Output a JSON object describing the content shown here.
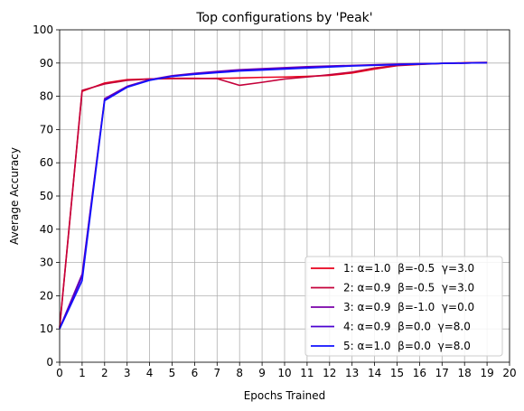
{
  "chart_data": {
    "type": "line",
    "title": "Top configurations by 'Peak'",
    "xlabel": "Epochs Trained",
    "ylabel": "Average Accuracy",
    "xlim": [
      0,
      20
    ],
    "ylim": [
      0,
      100
    ],
    "xticks": [
      "0",
      "1",
      "2",
      "3",
      "4",
      "5",
      "6",
      "7",
      "8",
      "9",
      "10",
      "11",
      "12",
      "13",
      "14",
      "15",
      "16",
      "17",
      "18",
      "19",
      "20"
    ],
    "yticks": [
      "0",
      "10",
      "20",
      "30",
      "40",
      "50",
      "60",
      "70",
      "80",
      "90",
      "100"
    ],
    "grid": true,
    "legend_position": "bottom-right",
    "x": [
      0,
      1,
      2,
      3,
      4,
      5,
      6,
      7,
      8,
      9,
      10,
      11,
      12,
      13,
      14,
      15,
      16,
      17,
      18,
      19
    ],
    "series": [
      {
        "name": "1: α=1.0  β=-0.5  γ=3.0",
        "color": "#e8001c",
        "values": [
          10.5,
          81.5,
          84.0,
          85.0,
          85.2,
          85.3,
          85.3,
          85.4,
          85.5,
          85.7,
          85.8,
          86.0,
          86.3,
          87.0,
          88.2,
          89.2,
          89.6,
          89.9,
          90.1,
          90.2
        ]
      },
      {
        "name": "2: α=0.9  β=-0.5  γ=3.0",
        "color": "#c4003a",
        "values": [
          10.3,
          81.8,
          83.7,
          84.8,
          85.2,
          85.4,
          85.4,
          85.3,
          83.3,
          84.2,
          85.2,
          85.8,
          86.5,
          87.3,
          88.5,
          89.3,
          89.7,
          89.9,
          90.0,
          90.1
        ]
      },
      {
        "name": "3: α=0.9  β=-1.0  γ=0.0",
        "color": "#7a00a8",
        "values": [
          10.2,
          26.5,
          79.3,
          83.0,
          85.0,
          86.2,
          86.9,
          87.5,
          88.0,
          88.3,
          88.6,
          88.9,
          89.1,
          89.3,
          89.5,
          89.7,
          89.8,
          89.9,
          90.0,
          90.1
        ]
      },
      {
        "name": "4: α=0.9  β=0.0  γ=8.0",
        "color": "#4a00d0",
        "values": [
          10.1,
          25.8,
          79.0,
          82.8,
          84.9,
          86.0,
          86.8,
          87.3,
          87.8,
          88.1,
          88.4,
          88.7,
          89.0,
          89.2,
          89.4,
          89.6,
          89.8,
          89.9,
          90.0,
          90.1
        ]
      },
      {
        "name": "5: α=1.0  β=0.0  γ=8.0",
        "color": "#1010ff",
        "values": [
          10.0,
          24.5,
          78.7,
          82.7,
          84.8,
          86.0,
          86.6,
          87.1,
          87.6,
          87.9,
          88.2,
          88.5,
          88.8,
          89.1,
          89.3,
          89.5,
          89.7,
          89.9,
          90.0,
          90.1
        ]
      }
    ]
  }
}
